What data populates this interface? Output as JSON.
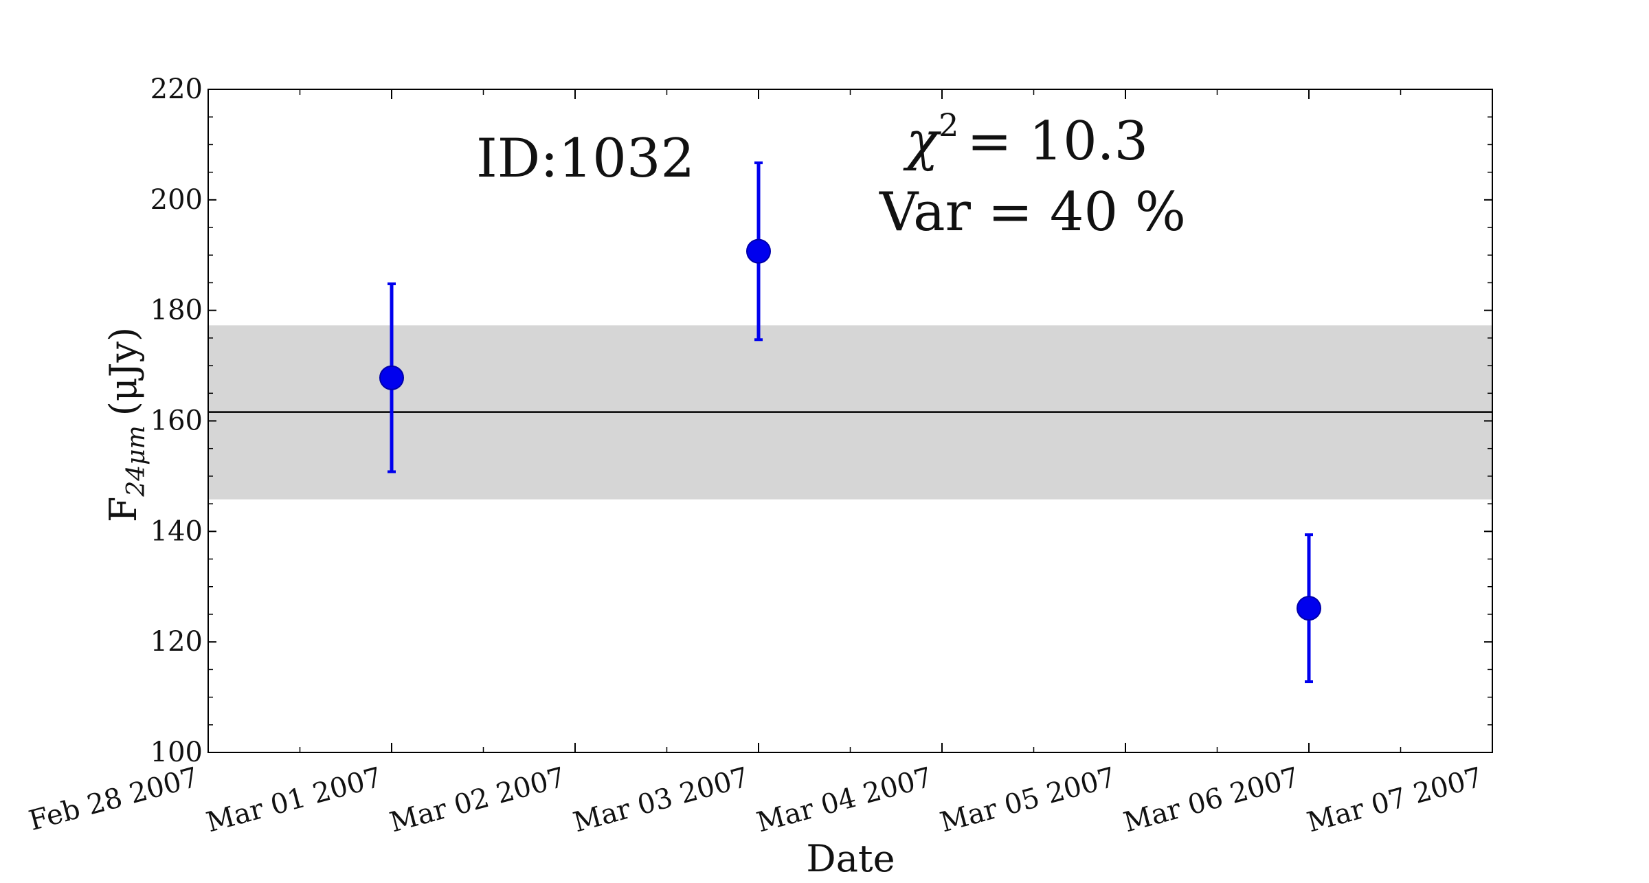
{
  "chart_data": {
    "type": "scatter",
    "xlabel": "Date",
    "ylabel": {
      "main": "F",
      "subscript": "24μm",
      "unit": "(μJy)"
    },
    "ylim": [
      100,
      220
    ],
    "yticks": [
      100,
      120,
      140,
      160,
      180,
      200,
      220
    ],
    "xlim": [
      "Feb 28 2007",
      "Mar 07 2007"
    ],
    "xticks": [
      "Feb 28 2007",
      "Mar 01 2007",
      "Mar 02 2007",
      "Mar 03 2007",
      "Mar 04 2007",
      "Mar 05 2007",
      "Mar 06 2007",
      "Mar 07 2007"
    ],
    "points": [
      {
        "x": "Mar 01 2007",
        "y": 167.8,
        "yerr": 17
      },
      {
        "x": "Mar 03 2007",
        "y": 190.7,
        "yerr": 16
      },
      {
        "x": "Mar 06 2007",
        "y": 126.1,
        "yerr": 13.3
      }
    ],
    "mean": 161.6,
    "band": [
      145.8,
      177.3
    ],
    "grid": false,
    "colors": {
      "points": "#0000ee",
      "band": "#d6d6d6",
      "mean_line": "#000000"
    },
    "annotations": {
      "id": "ID:1032",
      "chi2": {
        "symbol": "χ",
        "power": "2",
        "value": "= 10.3"
      },
      "var": "Var = 40 %"
    }
  }
}
